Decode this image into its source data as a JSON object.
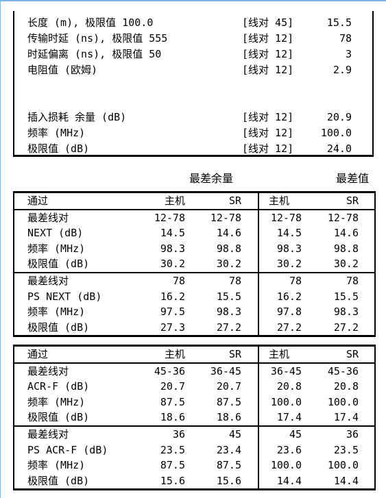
{
  "summary": [
    {
      "label": "长度 (m), 极限值 100.0",
      "pair": "[线对 45]",
      "value": "15.5"
    },
    {
      "label": "传输时延 (ns), 极限值 555",
      "pair": "[线对 12]",
      "value": "78"
    },
    {
      "label": "时延偏离 (ns), 极限值 50",
      "pair": "[线对 12]",
      "value": "3"
    },
    {
      "label": "电阻值 (欧姆)",
      "pair": "[线对 12]",
      "value": "2.9"
    },
    {
      "label": "插入损耗 余量 (dB)",
      "pair": "[线对 12]",
      "value": "20.9"
    },
    {
      "label": "频率 (MHz)",
      "pair": "[线对 12]",
      "value": "100.0"
    },
    {
      "label": "极限值 (dB)",
      "pair": "[线对 12]",
      "value": "24.0"
    }
  ],
  "section_headers": {
    "worst_margin": "最差余量",
    "worst_value": "最差值"
  },
  "table1": {
    "header": [
      "通过",
      "主机",
      "SR",
      "主机",
      "SR"
    ],
    "groups": [
      [
        [
          "最差线对",
          "12-78",
          "12-78",
          "12-78",
          "12-78"
        ],
        [
          "NEXT (dB)",
          "14.5",
          "14.6",
          "14.5",
          "14.6"
        ],
        [
          "频率 (MHz)",
          "98.3",
          "98.8",
          "98.3",
          "98.8"
        ],
        [
          "极限值 (dB)",
          "30.2",
          "30.2",
          "30.2",
          "30.2"
        ]
      ],
      [
        [
          "最差线对",
          "78",
          "78",
          "78",
          "78"
        ],
        [
          "PS NEXT (dB)",
          "16.2",
          "15.5",
          "16.2",
          "15.5"
        ],
        [
          "频率 (MHz)",
          "97.5",
          "98.3",
          "97.8",
          "98.3"
        ],
        [
          "极限值 (dB)",
          "27.3",
          "27.2",
          "27.2",
          "27.2"
        ]
      ]
    ]
  },
  "table2": {
    "header": [
      "通过",
      "主机",
      "SR",
      "主机",
      "SR"
    ],
    "groups": [
      [
        [
          "最差线对",
          "45-36",
          "36-45",
          "36-45",
          "45-36"
        ],
        [
          "ACR-F (dB)",
          "20.7",
          "20.7",
          "20.8",
          "20.8"
        ],
        [
          "频率 (MHz)",
          "87.5",
          "87.5",
          "100.0",
          "100.0"
        ],
        [
          "极限值 (dB)",
          "18.6",
          "18.6",
          "17.4",
          "17.4"
        ]
      ],
      [
        [
          "最差线对",
          "36",
          "45",
          "45",
          "36"
        ],
        [
          "PS ACR-F (dB)",
          "23.5",
          "23.4",
          "23.6",
          "23.5"
        ],
        [
          "频率 (MHz)",
          "87.5",
          "87.5",
          "100.0",
          "100.0"
        ],
        [
          "极限值 (dB)",
          "15.6",
          "15.6",
          "14.4",
          "14.4"
        ]
      ]
    ]
  }
}
